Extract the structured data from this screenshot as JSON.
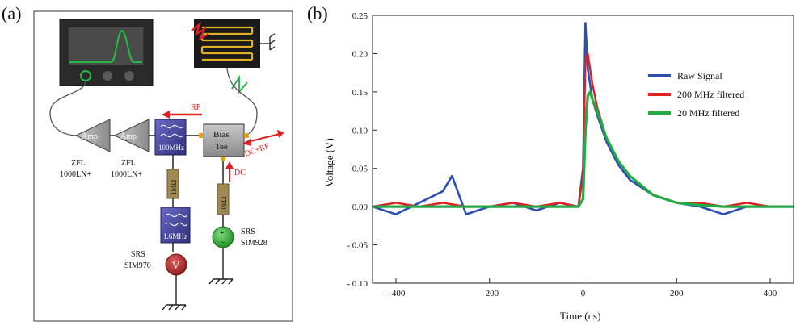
{
  "panel_a": {
    "label": "(a)",
    "amp1": {
      "label": "Amp",
      "part": [
        "ZFL",
        "1000LN+"
      ]
    },
    "amp2": {
      "label": "Amp",
      "part": [
        "ZFL",
        "1000LN+"
      ]
    },
    "filter_main": {
      "label": "100MHz"
    },
    "bias_tee": {
      "label": [
        "Bias",
        "Tee"
      ]
    },
    "rf_label": "RF",
    "dc_label": "DC",
    "dcrf_label": "DC+RF",
    "resistor_left": "1MΩ",
    "resistor_right": "10kΩ",
    "filter_low": {
      "label": "1.6MHz"
    },
    "voltmeter": {
      "symbol": "V",
      "name": [
        "SRS",
        "SIM970"
      ]
    },
    "source": {
      "plus": "+",
      "minus": "−",
      "name": [
        "SRS",
        "SIM928"
      ]
    },
    "colors": {
      "rf_arrow": "#e02020",
      "filter_fill": "#3f3f9a",
      "resistor": "#a08a52",
      "voltmeter": "#b02020",
      "source": "#2aa12a",
      "scope_trace": "#22bb44"
    }
  },
  "panel_b": {
    "label": "(b)",
    "chart_data": {
      "type": "line",
      "title": "",
      "xlabel": "Time (ns)",
      "ylabel": "Voltage (V)",
      "xlim": [
        -450,
        450
      ],
      "ylim": [
        -0.1,
        0.25
      ],
      "xticks": [
        -400,
        -200,
        0,
        200,
        400
      ],
      "xtick_labels": [
        "- 400",
        "- 200",
        "0",
        "200",
        "400"
      ],
      "yticks": [
        -0.1,
        -0.05,
        0,
        0.05,
        0.1,
        0.15,
        0.2,
        0.25
      ],
      "ytick_labels": [
        "- 0.10",
        "- 0.05",
        "0.00",
        "0.05",
        "0.10",
        "0.15",
        "0.20",
        "0.25"
      ],
      "grid": false,
      "legend_position": "top-right",
      "series": [
        {
          "name": "Raw Signal",
          "color": "#2a4fb0",
          "x": [
            -450,
            -400,
            -350,
            -300,
            -280,
            -250,
            -200,
            -150,
            -100,
            -50,
            -10,
            0,
            5,
            10,
            20,
            30,
            50,
            75,
            100,
            150,
            200,
            250,
            300,
            350,
            400,
            450
          ],
          "y": [
            0,
            -0.01,
            0.005,
            0.02,
            0.04,
            -0.01,
            0,
            0.005,
            -0.005,
            0.005,
            0,
            0.05,
            0.24,
            0.18,
            0.14,
            0.12,
            0.085,
            0.055,
            0.035,
            0.015,
            0.005,
            0,
            -0.01,
            0,
            0,
            0
          ]
        },
        {
          "name": "200 MHz filtered",
          "color": "#e02020",
          "x": [
            -450,
            -400,
            -350,
            -300,
            -250,
            -200,
            -150,
            -100,
            -50,
            -10,
            0,
            5,
            10,
            20,
            30,
            50,
            75,
            100,
            150,
            200,
            250,
            300,
            350,
            400,
            450
          ],
          "y": [
            0,
            0.005,
            0,
            0.005,
            0,
            0,
            0.005,
            0,
            0.005,
            0,
            0.04,
            0.19,
            0.2,
            0.16,
            0.13,
            0.09,
            0.06,
            0.04,
            0.015,
            0.005,
            0.005,
            0,
            0.005,
            0,
            0
          ]
        },
        {
          "name": "20 MHz filtered",
          "color": "#22aa44",
          "x": [
            -450,
            -400,
            -350,
            -300,
            -250,
            -200,
            -150,
            -100,
            -50,
            -10,
            0,
            5,
            10,
            15,
            20,
            30,
            50,
            75,
            100,
            150,
            200,
            250,
            300,
            350,
            400,
            450
          ],
          "y": [
            0,
            0,
            0,
            0,
            0,
            0,
            0,
            0,
            0,
            0,
            0.01,
            0.1,
            0.145,
            0.15,
            0.14,
            0.125,
            0.09,
            0.06,
            0.04,
            0.015,
            0.005,
            0.002,
            0,
            0,
            0,
            0
          ]
        }
      ]
    }
  }
}
